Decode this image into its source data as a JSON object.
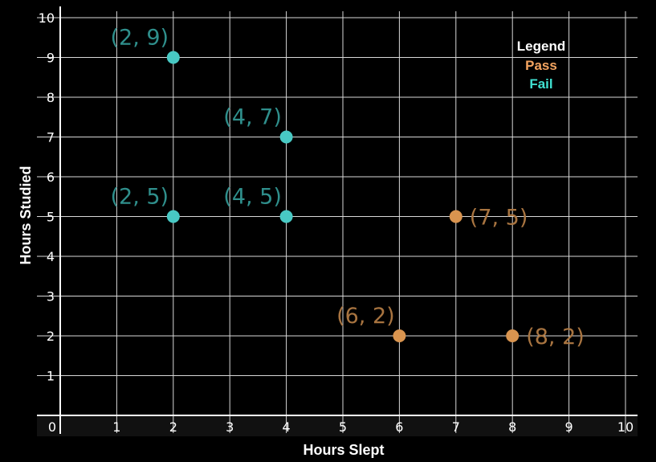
{
  "chart_data": {
    "type": "scatter",
    "xlabel": "Hours Slept",
    "ylabel": "Hours Studied",
    "xlim": [
      0,
      10
    ],
    "ylim": [
      0,
      10
    ],
    "x_ticks": [
      "1",
      "2",
      "3",
      "4",
      "5",
      "6",
      "7",
      "8",
      "9",
      "10"
    ],
    "y_ticks": [
      "1",
      "2",
      "3",
      "4",
      "5",
      "6",
      "7",
      "8",
      "9",
      "10"
    ],
    "origin_label": "0",
    "grid": true,
    "legend": {
      "title": "Legend",
      "position": "top-right",
      "entries": [
        {
          "name": "Pass",
          "color": "#f4a460"
        },
        {
          "name": "Fail",
          "color": "#40e0d0"
        }
      ]
    },
    "series": [
      {
        "name": "Fail",
        "color": "#48c9c4",
        "label_color": "#2f8f8c",
        "points": [
          {
            "x": 2,
            "y": 9,
            "label": "(2, 9)"
          },
          {
            "x": 4,
            "y": 7,
            "label": "(4, 7)"
          },
          {
            "x": 2,
            "y": 5,
            "label": "(2, 5)"
          },
          {
            "x": 4,
            "y": 5,
            "label": "(4, 5)"
          }
        ]
      },
      {
        "name": "Pass",
        "color": "#d9944f",
        "label_color": "#a87440",
        "points": [
          {
            "x": 7,
            "y": 5,
            "label": "(7, 5)"
          },
          {
            "x": 6,
            "y": 2,
            "label": "(6, 2)"
          },
          {
            "x": 8,
            "y": 2,
            "label": "(8, 2)"
          }
        ]
      }
    ]
  }
}
